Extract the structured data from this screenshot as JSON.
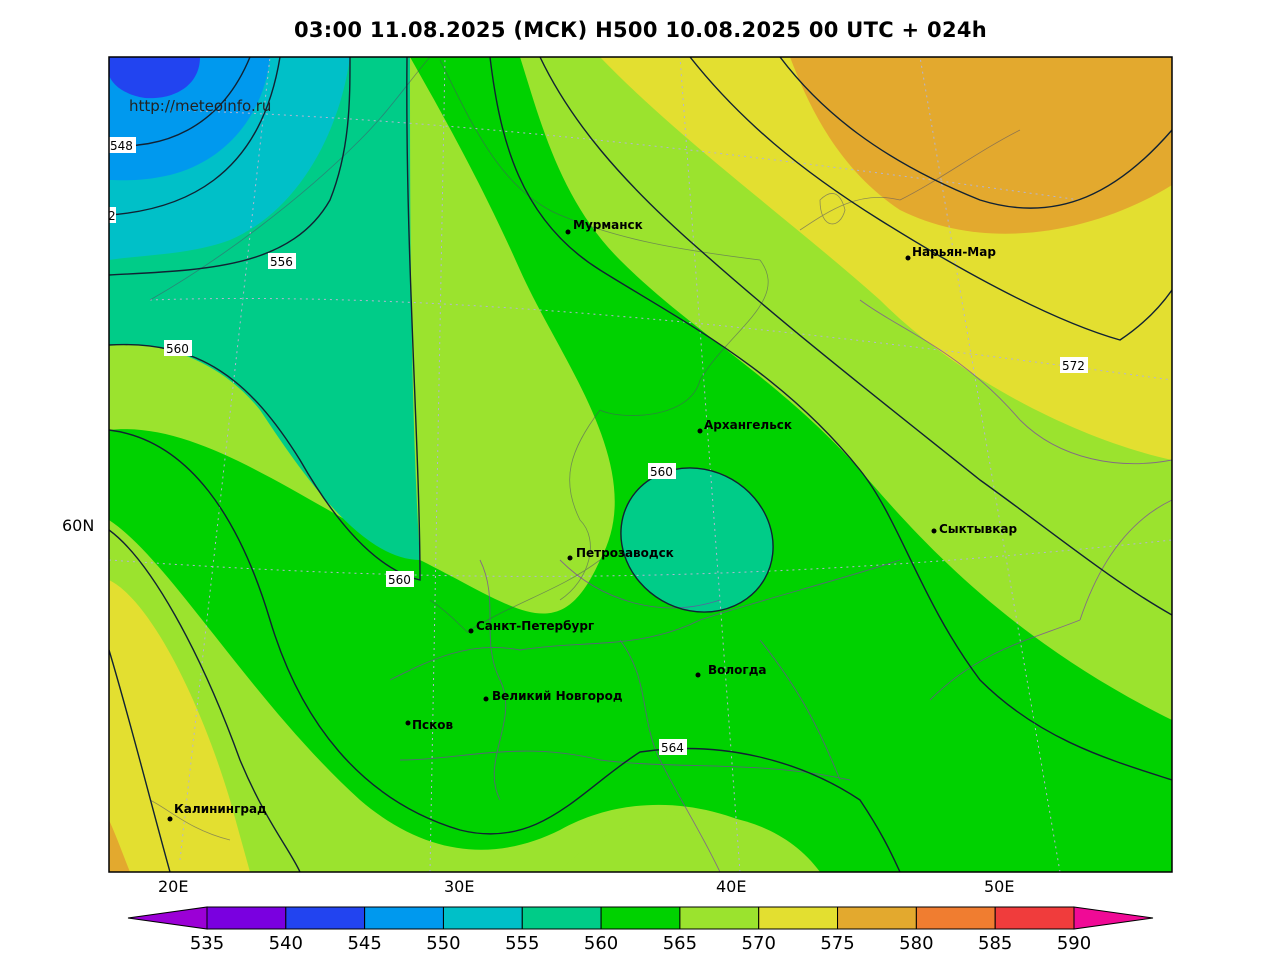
{
  "title": "03:00 11.08.2025 (МСК) H500  10.08.2025 00 UTC + 024h",
  "site": "http://meteoinfo.ru",
  "lon_labels": [
    "20E",
    "30E",
    "40E",
    "50E"
  ],
  "lat_labels": [
    "60N"
  ],
  "contour_labels": [
    "548",
    "556",
    "560",
    "560",
    "560",
    "564",
    "572",
    "2"
  ],
  "cities": [
    {
      "name": "Мурманск"
    },
    {
      "name": "Нарьян-Мар"
    },
    {
      "name": "Архангельск"
    },
    {
      "name": "Сыктывкар"
    },
    {
      "name": "Петрозаводск"
    },
    {
      "name": "Санкт-Петербург"
    },
    {
      "name": "Вологда"
    },
    {
      "name": "Великий Новгород"
    },
    {
      "name": "Псков"
    },
    {
      "name": "Калининград"
    }
  ],
  "colorbar": {
    "ticks": [
      "535",
      "540",
      "545",
      "550",
      "555",
      "560",
      "565",
      "570",
      "575",
      "580",
      "585",
      "590"
    ],
    "colors": [
      "#9b00d6",
      "#7a00e0",
      "#2244f0",
      "#0099ee",
      "#00c0c8",
      "#00cc88",
      "#00d200",
      "#9be32e",
      "#e3df30",
      "#e3a92e",
      "#f07d30",
      "#f03c3c",
      "#f00a96"
    ]
  }
}
